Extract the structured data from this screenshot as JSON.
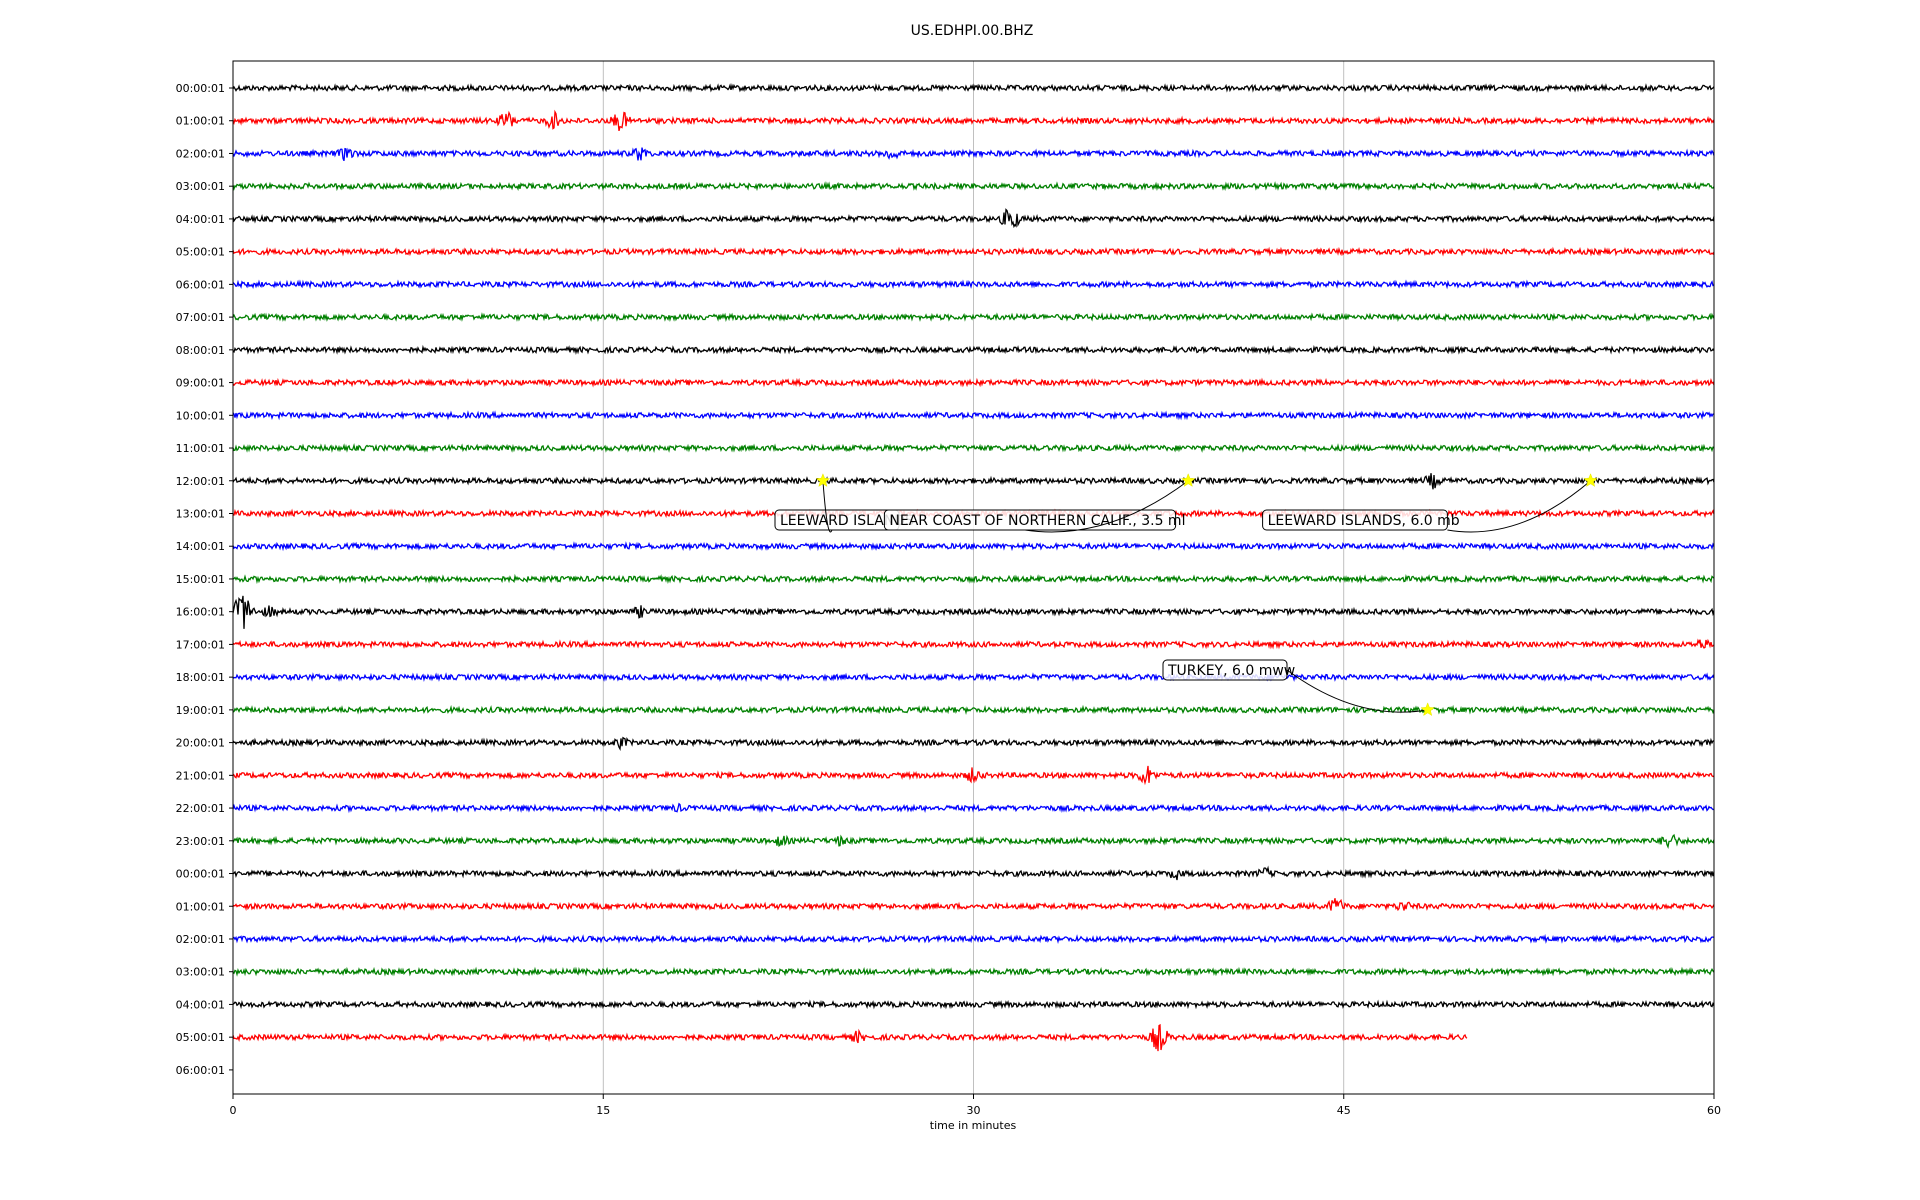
{
  "chart_data": {
    "type": "line",
    "title": "US.EDHPI.00.BHZ",
    "xlabel": "time in minutes",
    "ylabel": "",
    "xlim": [
      0,
      60
    ],
    "x_ticks": [
      0,
      15,
      30,
      45,
      60
    ],
    "grid": "vertical at major x ticks",
    "trace_colors": [
      "#000000",
      "#ff0000",
      "#0000ff",
      "#008000"
    ],
    "row_labels": [
      "00:00:01",
      "01:00:01",
      "02:00:01",
      "03:00:01",
      "04:00:01",
      "05:00:01",
      "06:00:01",
      "07:00:01",
      "08:00:01",
      "09:00:01",
      "10:00:01",
      "11:00:01",
      "12:00:01",
      "13:00:01",
      "14:00:01",
      "15:00:01",
      "16:00:01",
      "17:00:01",
      "18:00:01",
      "19:00:01",
      "20:00:01",
      "21:00:01",
      "22:00:01",
      "23:00:01",
      "00:00:01",
      "01:00:01",
      "02:00:01",
      "03:00:01",
      "04:00:01",
      "05:00:01",
      "06:00:01"
    ],
    "trace_end_minutes": [
      60,
      60,
      60,
      60,
      60,
      60,
      60,
      60,
      60,
      60,
      60,
      60,
      60,
      60,
      60,
      60,
      60,
      60,
      60,
      60,
      60,
      60,
      60,
      60,
      60,
      60,
      60,
      60,
      60,
      50,
      0
    ],
    "bursts": [
      {
        "row": 1,
        "t": 11.1,
        "amp": 11
      },
      {
        "row": 1,
        "t": 13.0,
        "amp": 10
      },
      {
        "row": 1,
        "t": 15.7,
        "amp": 12
      },
      {
        "row": 2,
        "t": 4.6,
        "amp": 9
      },
      {
        "row": 2,
        "t": 16.5,
        "amp": 9
      },
      {
        "row": 2,
        "t": 26.7,
        "amp": 8
      },
      {
        "row": 4,
        "t": 31.5,
        "amp": 14
      },
      {
        "row": 12,
        "t": 48.6,
        "amp": 9
      },
      {
        "row": 16,
        "t": 0.4,
        "amp": 22
      },
      {
        "row": 16,
        "t": 1.5,
        "amp": 7
      },
      {
        "row": 16,
        "t": 16.5,
        "amp": 7
      },
      {
        "row": 17,
        "t": 59.5,
        "amp": 7
      },
      {
        "row": 20,
        "t": 15.7,
        "amp": 7
      },
      {
        "row": 21,
        "t": 37.0,
        "amp": 12
      },
      {
        "row": 21,
        "t": 30.0,
        "amp": 9
      },
      {
        "row": 22,
        "t": 18.0,
        "amp": 5
      },
      {
        "row": 23,
        "t": 22.2,
        "amp": 7
      },
      {
        "row": 23,
        "t": 24.6,
        "amp": 6
      },
      {
        "row": 23,
        "t": 58.2,
        "amp": 10
      },
      {
        "row": 24,
        "t": 38.2,
        "amp": 7
      },
      {
        "row": 24,
        "t": 41.8,
        "amp": 7
      },
      {
        "row": 25,
        "t": 44.7,
        "amp": 10
      },
      {
        "row": 25,
        "t": 47.4,
        "amp": 7
      },
      {
        "row": 29,
        "t": 37.5,
        "amp": 16
      },
      {
        "row": 29,
        "t": 25.3,
        "amp": 7
      }
    ],
    "events": [
      {
        "label": "LEEWARD ISLANDS",
        "row": 12,
        "t": 23.9
      },
      {
        "label": "NEAR COAST OF NORTHERN CALIF., 3.5 ml",
        "row": 12,
        "t": 38.7
      },
      {
        "label": "LEEWARD ISLANDS, 6.0 mb",
        "row": 12,
        "t": 55.0
      },
      {
        "label": "TURKEY, 6.0 mww",
        "row": 19,
        "t": 48.4
      }
    ]
  }
}
